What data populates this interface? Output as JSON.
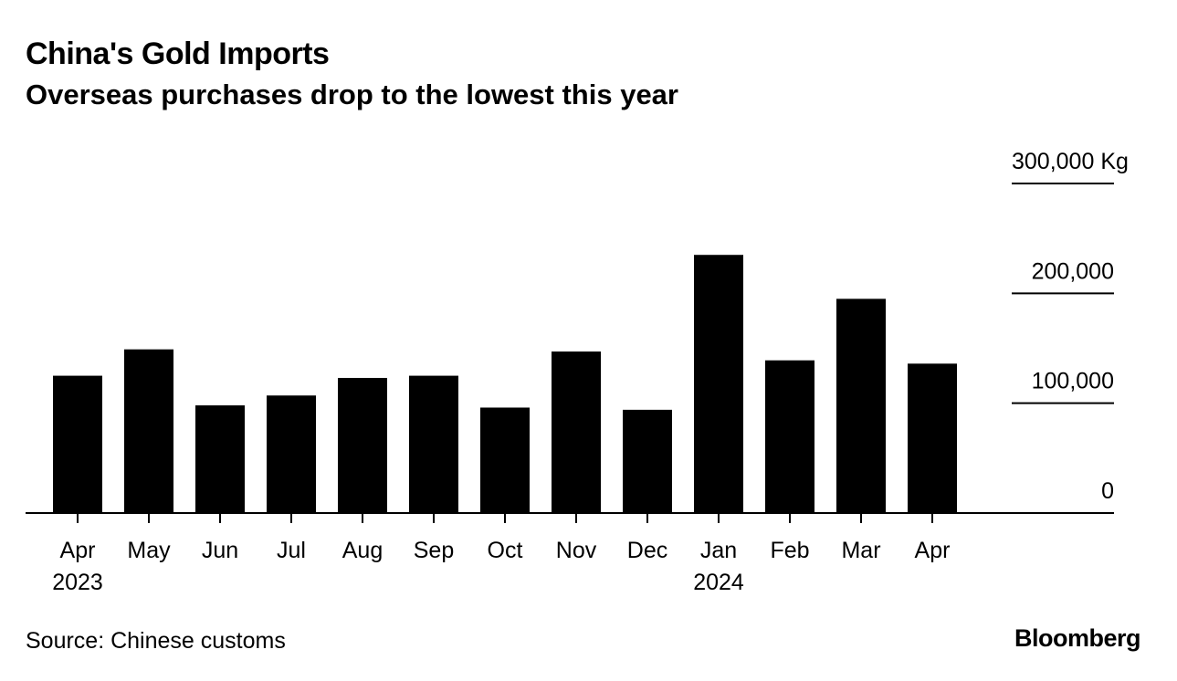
{
  "header": {
    "title": "China's Gold Imports",
    "subtitle": "Overseas purchases drop to the lowest this year"
  },
  "footer": {
    "source": "Source: Chinese customs",
    "brand": "Bloomberg"
  },
  "colors": {
    "bar": "#000000",
    "axis": "#000000",
    "background": "#ffffff"
  },
  "chart_data": {
    "type": "bar",
    "title": "China's Gold Imports",
    "subtitle": "Overseas purchases drop to the lowest this year",
    "xlabel": "",
    "ylabel": "",
    "unit": "Kg",
    "categories": [
      "Apr",
      "May",
      "Jun",
      "Jul",
      "Aug",
      "Sep",
      "Oct",
      "Nov",
      "Dec",
      "Jan",
      "Feb",
      "Mar",
      "Apr"
    ],
    "year_labels": [
      "2023",
      "",
      "",
      "",
      "",
      "",
      "",
      "",
      "",
      "2024",
      "",
      "",
      ""
    ],
    "values": [
      125000,
      149000,
      98000,
      107000,
      123000,
      125000,
      96000,
      147000,
      94000,
      235000,
      139000,
      195000,
      136000
    ],
    "ylim": [
      0,
      300000
    ],
    "yticks": [
      0,
      100000,
      200000,
      300000
    ],
    "ytick_labels": [
      "0",
      "100,000",
      "200,000",
      "300,000 Kg"
    ],
    "grid": false,
    "y_axis_side": "right"
  }
}
